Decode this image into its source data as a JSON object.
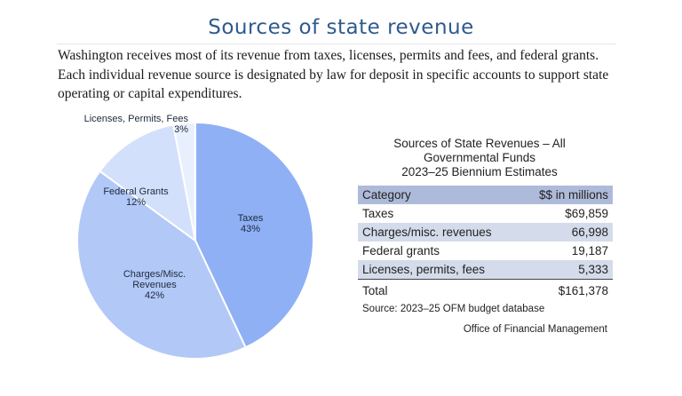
{
  "page": {
    "title": "Sources of state revenue",
    "intro": "Washington receives most of its revenue from taxes, licenses, permits and fees, and federal grants. Each individual revenue source is designated by law for deposit in specific accounts to support state operating or capital expenditures."
  },
  "chart_data": [
    {
      "type": "pie",
      "slices": [
        {
          "label_lines": [
            "Taxes"
          ],
          "percent_label": "43%",
          "value": 43,
          "color": "#8fb0f5"
        },
        {
          "label_lines": [
            "Charges/Misc.",
            "Revenues"
          ],
          "percent_label": "42%",
          "value": 42,
          "color": "#b2c8f7"
        },
        {
          "label_lines": [
            "Federal Grants"
          ],
          "percent_label": "12%",
          "value": 12,
          "color": "#d2e0fb"
        },
        {
          "label_lines": [
            "Licenses, Permits, Fees"
          ],
          "percent_label": "3%",
          "value": 3,
          "color": "#e9f0fd"
        }
      ]
    },
    {
      "type": "table",
      "title_lines": [
        "Sources of State Revenues – All",
        "Governmental Funds",
        "2023–25 Biennium Estimates"
      ],
      "columns": [
        "Category",
        "$$ in millions"
      ],
      "rows": [
        {
          "category": "Taxes",
          "amount": "$69,859"
        },
        {
          "category": "Charges/misc. revenues",
          "amount": "66,998"
        },
        {
          "category": "Federal grants",
          "amount": "19,187"
        },
        {
          "category": "Licenses, permits, fees",
          "amount": "5,333"
        }
      ],
      "total": {
        "category": "Total",
        "amount": "$161,378"
      },
      "source": "Source: 2023–25 OFM budget database"
    }
  ],
  "footer": {
    "credit": "Office of Financial Management"
  }
}
